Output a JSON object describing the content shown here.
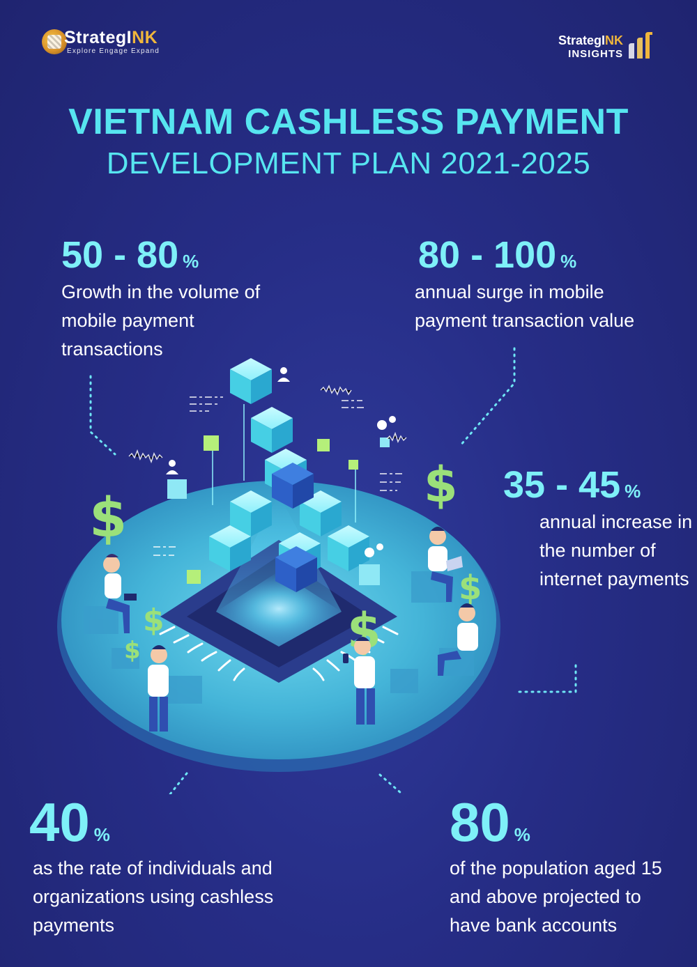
{
  "logos": {
    "left": {
      "brand_main": "StrategI",
      "brand_accent": "NK",
      "tagline": "Explore Engage Expand"
    },
    "right": {
      "brand_main": "StrategI",
      "brand_accent": "NK",
      "sub": "INSIGHTS"
    }
  },
  "header": {
    "title": "VIETNAM CASHLESS PAYMENT",
    "subtitle": "DEVELOPMENT PLAN 2021-2025"
  },
  "stats": [
    {
      "value": "50 - 80",
      "unit": "%",
      "description": "Growth in the volume of mobile payment transactions"
    },
    {
      "value": "80 - 100",
      "unit": "%",
      "description": "annual surge in mobile payment transaction value"
    },
    {
      "value": "35 - 45",
      "unit": "%",
      "description": "annual increase in the number of internet payments"
    },
    {
      "value": "40",
      "unit": "%",
      "description": "as the rate of individuals and organizations using cashless payments"
    },
    {
      "value": "80",
      "unit": "%",
      "description": "of the population aged 15 and above projected to have bank accounts"
    }
  ],
  "colors": {
    "background": "#262d86",
    "accent_cyan": "#57e5f0",
    "accent_gold": "#f0b63c",
    "dollar_green": "#9be07a",
    "platform": "#3fb6d6"
  },
  "illustration": {
    "icons": [
      "dollar-sign-icon",
      "gear-icon",
      "user-icon",
      "laptop-icon",
      "phone-icon",
      "microchip-icon"
    ]
  }
}
